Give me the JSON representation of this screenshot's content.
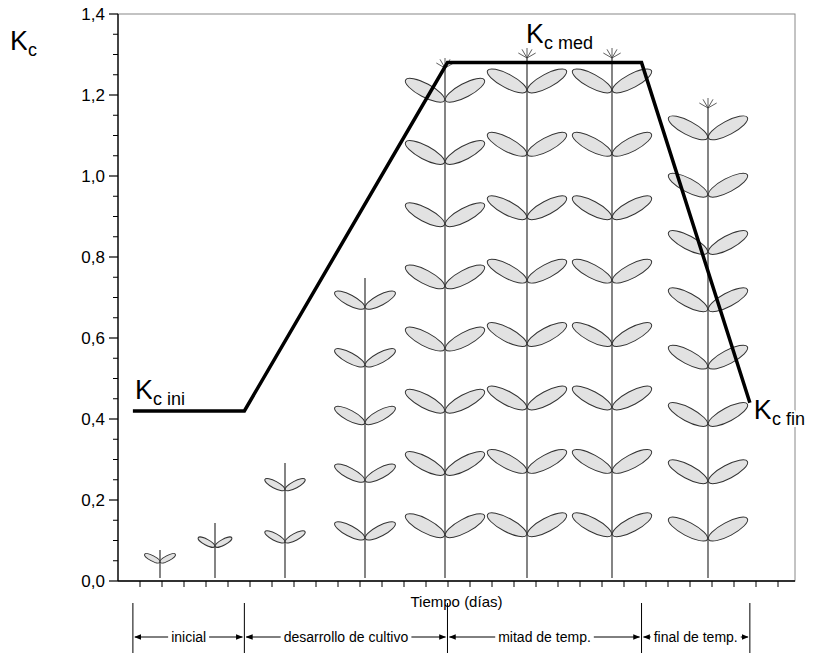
{
  "chart_data": {
    "type": "line",
    "x_label": "Tiempo (días)",
    "y_label": "Kc",
    "x": [
      3.3,
      28,
      73,
      116,
      140
    ],
    "values": [
      0.42,
      0.42,
      1.28,
      1.28,
      0.44
    ],
    "color": "#000000",
    "xlim": [
      0,
      150
    ],
    "ylim": [
      0,
      1.4
    ],
    "yticks": [
      {
        "value": 0,
        "label": "0,0"
      },
      {
        "value": 0.2,
        "label": "0,2"
      },
      {
        "value": 0.4,
        "label": "0,4"
      },
      {
        "value": 0.6,
        "label": "0,6"
      },
      {
        "value": 0.8,
        "label": "0,8"
      },
      {
        "value": 1.0,
        "label": "1,0"
      },
      {
        "value": 1.2,
        "label": "1,2"
      },
      {
        "value": 1.4,
        "label": "1,4"
      }
    ],
    "tick_labels": "y",
    "grid": false,
    "annotations": [
      "Kc ini",
      "Kc med",
      "Kc fin"
    ],
    "stages": {
      "labels": [
        "inicial",
        "desarrollo de cultivo",
        "mitad de temp.",
        "final de temp."
      ],
      "bounds": [
        3.3,
        28,
        73,
        116,
        140
      ]
    }
  }
}
